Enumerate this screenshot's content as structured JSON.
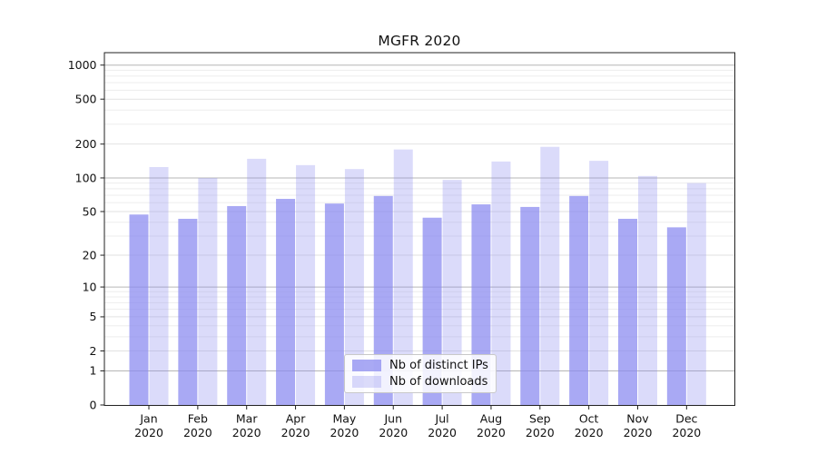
{
  "chart_data": {
    "type": "bar",
    "title": "MGFR 2020",
    "categories": [
      "Jan",
      "Feb",
      "Mar",
      "Apr",
      "May",
      "Jun",
      "Jul",
      "Aug",
      "Sep",
      "Oct",
      "Nov",
      "Dec"
    ],
    "year_label": "2020",
    "series": [
      {
        "name": "Nb of distinct IPs",
        "color": "rgba(136,136,240,0.72)",
        "values": [
          47,
          43,
          56,
          65,
          59,
          69,
          44,
          58,
          55,
          69,
          43,
          36
        ]
      },
      {
        "name": "Nb of downloads",
        "color": "rgba(136,136,240,0.30)",
        "values": [
          125,
          100,
          148,
          130,
          120,
          179,
          96,
          140,
          189,
          142,
          104,
          90
        ]
      }
    ],
    "y_scale": "log1p",
    "y_ticks": [
      0,
      1,
      2,
      5,
      10,
      20,
      50,
      100,
      200,
      500,
      1000
    ],
    "y_tick_labels": [
      "0",
      "1",
      "2",
      "5",
      "10",
      "20",
      "50",
      "100",
      "200",
      "500",
      "1000"
    ],
    "y_major_grid": [
      1,
      10,
      100,
      1000
    ],
    "y_minor_grid": [
      3,
      4,
      6,
      7,
      8,
      9,
      30,
      40,
      60,
      70,
      80,
      90,
      300,
      400,
      600,
      700,
      800,
      900
    ],
    "ylim": [
      0,
      1300
    ],
    "grid": true,
    "legend_position": "lower center",
    "colors": {
      "bar_base": "#8888f0",
      "major_grid": "#b6b6b6",
      "tick_grid": "#e2e2e2",
      "minor_grid": "#ededed",
      "spine": "#222222",
      "legend_border": "#c9c9c9"
    }
  }
}
